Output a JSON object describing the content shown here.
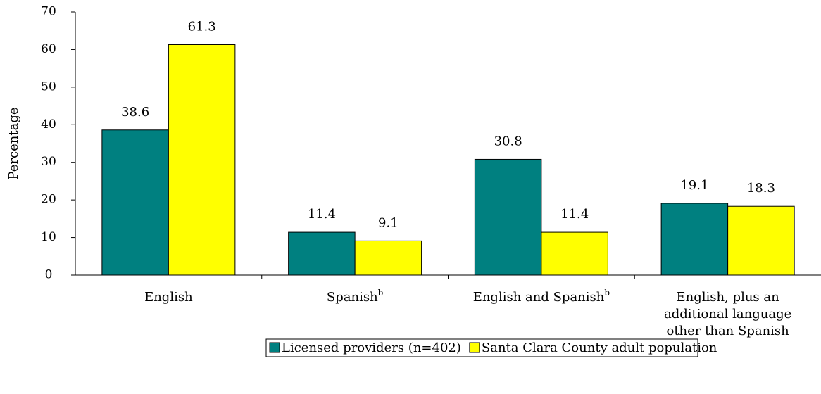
{
  "chart_data": {
    "type": "bar",
    "y_label": "Percentage",
    "categories": [
      "English",
      "Spanish",
      "English and Spanish",
      "English, plus an additional language other than Spanish"
    ],
    "category_notes": {
      "1": "b",
      "2": "b"
    },
    "series": [
      {
        "name": "Licensed providers (n=402)",
        "color": "#008080",
        "values": [
          38.6,
          11.4,
          30.8,
          19.1
        ]
      },
      {
        "name": "Santa Clara County adult population",
        "color": "#ffff00",
        "values": [
          61.3,
          9.1,
          11.4,
          18.3
        ]
      }
    ],
    "ylim": [
      0,
      70
    ],
    "yticks": [
      0,
      10,
      20,
      30,
      40,
      50,
      60,
      70
    ],
    "grid": false
  }
}
